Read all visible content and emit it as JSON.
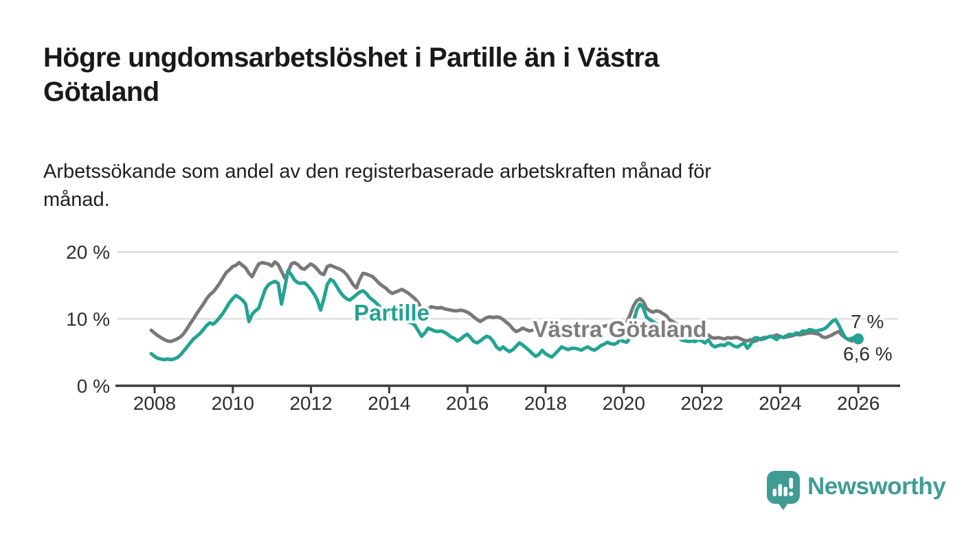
{
  "header": {
    "title": "Högre ungdomsarbetslöshet i Partille än i Västra\nGötaland",
    "subtitle": "Arbetssökande som andel av den registerbaserade arbetskraften månad för\nmånad."
  },
  "footer": {
    "brand": "Newsworthy"
  },
  "colors": {
    "partille": "#23a392",
    "vastra_gotaland": "#787878",
    "axis": "#3a3a3a",
    "gridline": "#d8d8d8",
    "label_text": "#2e2e2e",
    "logo_teal": "#3f9c94"
  },
  "chart_data": {
    "type": "line",
    "title": "Högre ungdomsarbetslöshet i Partille än i Västra Götaland",
    "subtitle": "Arbetssökande som andel av den registerbaserade arbetskraften månad för månad.",
    "unit": "%",
    "frequency": "monthly",
    "x_start": "2008-01",
    "x_end": "2026-02",
    "ylim": [
      0,
      20
    ],
    "grid": "horizontal",
    "legend_position": "inline-labels",
    "yticks": [
      {
        "value": 20,
        "label": "20 %"
      },
      {
        "value": 10,
        "label": "10 %"
      },
      {
        "value": 0,
        "label": "0 %"
      }
    ],
    "xticks": [
      {
        "year": 2008,
        "label": "2008"
      },
      {
        "year": 2010,
        "label": "2010"
      },
      {
        "year": 2012,
        "label": "2012"
      },
      {
        "year": 2014,
        "label": "2014"
      },
      {
        "year": 2016,
        "label": "2016"
      },
      {
        "year": 2018,
        "label": "2018"
      },
      {
        "year": 2020,
        "label": "2020"
      },
      {
        "year": 2022,
        "label": "2022"
      },
      {
        "year": 2024,
        "label": "2024"
      },
      {
        "year": 2026,
        "label": "2026"
      }
    ],
    "series": [
      {
        "name": "Partille",
        "color": "#23a392",
        "end_label": "7 %",
        "end_value": 7.0,
        "values": [
          4.8,
          4.4,
          4.1,
          4.0,
          3.9,
          4.0,
          3.9,
          4.0,
          4.2,
          4.6,
          5.2,
          5.8,
          6.4,
          7.0,
          7.4,
          7.8,
          8.4,
          9.0,
          9.4,
          9.2,
          9.6,
          10.2,
          10.8,
          11.6,
          12.4,
          13.0,
          13.5,
          13.2,
          12.8,
          12.2,
          9.6,
          10.7,
          11.2,
          11.6,
          13.0,
          14.4,
          15.1,
          15.4,
          15.6,
          15.3,
          12.2,
          14.6,
          17.2,
          16.6,
          15.8,
          15.4,
          15.3,
          15.4,
          15.0,
          14.4,
          13.7,
          12.8,
          11.3,
          13.0,
          15.1,
          15.9,
          15.6,
          14.8,
          14.0,
          13.4,
          13.0,
          12.8,
          13.2,
          13.6,
          14.0,
          14.2,
          13.8,
          13.2,
          12.8,
          12.4,
          11.9,
          11.4,
          11.0,
          10.6,
          10.2,
          9.8,
          9.7,
          9.6,
          9.7,
          9.5,
          9.4,
          9.0,
          8.2,
          7.4,
          7.9,
          8.6,
          8.4,
          8.2,
          8.1,
          8.2,
          8.0,
          7.7,
          7.3,
          7.1,
          6.7,
          7.0,
          7.4,
          7.7,
          7.2,
          6.6,
          6.4,
          6.7,
          7.1,
          7.4,
          7.2,
          6.6,
          5.8,
          5.4,
          5.8,
          5.4,
          5.1,
          5.4,
          5.9,
          6.4,
          6.1,
          5.7,
          5.3,
          4.8,
          4.4,
          4.7,
          5.3,
          4.8,
          4.5,
          4.3,
          4.8,
          5.3,
          5.8,
          5.6,
          5.4,
          5.6,
          5.6,
          5.5,
          5.3,
          5.6,
          5.8,
          5.5,
          5.3,
          5.6,
          6.0,
          6.2,
          6.5,
          6.3,
          6.2,
          6.4,
          6.9,
          6.6,
          6.5,
          7.2,
          9.4,
          11.3,
          12.2,
          11.7,
          10.3,
          9.9,
          9.6,
          9.3,
          9.0,
          8.7,
          8.4,
          8.0,
          7.7,
          7.4,
          7.1,
          6.8,
          6.7,
          6.6,
          6.7,
          6.6,
          6.9,
          6.7,
          6.4,
          6.9,
          6.1,
          5.8,
          6.0,
          6.1,
          6.0,
          6.4,
          6.2,
          5.9,
          5.8,
          6.1,
          6.4,
          5.6,
          6.2,
          7.1,
          7.2,
          6.9,
          7.0,
          7.2,
          7.4,
          7.2,
          6.9,
          7.4,
          7.2,
          7.5,
          7.7,
          7.6,
          7.9,
          7.8,
          8.2,
          8.1,
          8.4,
          8.3,
          8.1,
          8.3,
          8.4,
          8.6,
          9.1,
          9.6,
          9.9,
          9.1,
          8.1,
          7.2,
          6.9,
          7.1,
          7.2,
          7.0
        ]
      },
      {
        "name": "Västra Götaland",
        "color": "#787878",
        "end_label": "6,6 %",
        "end_value": 6.6,
        "values": [
          8.3,
          7.9,
          7.5,
          7.2,
          6.9,
          6.7,
          6.6,
          6.8,
          7.0,
          7.3,
          7.8,
          8.5,
          9.3,
          10.0,
          10.8,
          11.5,
          12.2,
          13.0,
          13.6,
          14.0,
          14.6,
          15.3,
          16.1,
          16.9,
          17.3,
          17.8,
          18.0,
          18.4,
          18.0,
          17.6,
          16.8,
          16.3,
          17.3,
          18.2,
          18.4,
          18.3,
          18.2,
          17.9,
          18.5,
          18.1,
          17.1,
          16.1,
          16.9,
          18.2,
          18.4,
          18.1,
          17.6,
          17.4,
          17.8,
          18.2,
          17.9,
          17.4,
          16.8,
          16.6,
          17.8,
          18.0,
          17.8,
          17.6,
          17.4,
          17.1,
          16.6,
          15.9,
          15.1,
          14.6,
          15.9,
          16.8,
          16.7,
          16.5,
          16.3,
          15.8,
          15.3,
          14.9,
          14.6,
          14.1,
          13.8,
          14.0,
          14.2,
          14.4,
          14.1,
          13.8,
          13.4,
          13.0,
          12.4,
          11.4,
          10.7,
          11.5,
          11.8,
          11.7,
          11.6,
          11.7,
          11.5,
          11.4,
          11.3,
          11.2,
          11.2,
          11.3,
          11.2,
          11.0,
          10.7,
          10.3,
          9.9,
          9.6,
          9.9,
          10.2,
          10.3,
          10.2,
          10.3,
          10.2,
          9.9,
          9.5,
          9.1,
          8.5,
          8.1,
          8.3,
          8.6,
          8.4,
          8.2,
          8.3,
          8.4,
          8.3,
          8.4,
          8.2,
          8.1,
          8.0,
          8.2,
          8.4,
          8.6,
          8.5,
          8.4,
          8.3,
          8.4,
          8.5,
          8.4,
          8.5,
          8.6,
          8.5,
          8.4,
          8.6,
          8.8,
          8.9,
          9.0,
          8.9,
          9.0,
          9.2,
          9.3,
          9.2,
          9.5,
          10.6,
          11.9,
          12.7,
          13.0,
          12.6,
          11.6,
          11.2,
          11.0,
          11.2,
          11.1,
          10.8,
          10.5,
          9.9,
          9.6,
          9.3,
          8.9,
          8.5,
          8.2,
          8.0,
          7.9,
          7.8,
          7.7,
          7.5,
          7.4,
          7.6,
          7.2,
          7.1,
          7.2,
          7.1,
          7.0,
          7.2,
          7.1,
          7.2,
          7.2,
          7.0,
          6.8,
          6.7,
          6.9,
          6.6,
          6.8,
          7.0,
          7.2,
          7.2,
          7.4,
          7.4,
          7.6,
          7.4,
          7.2,
          7.3,
          7.4,
          7.5,
          7.7,
          7.6,
          7.7,
          7.8,
          7.9,
          7.9,
          7.8,
          7.7,
          7.3,
          7.2,
          7.4,
          7.6,
          7.9,
          8.1,
          7.6,
          7.2,
          6.9,
          6.7,
          6.8,
          6.6
        ]
      }
    ]
  }
}
